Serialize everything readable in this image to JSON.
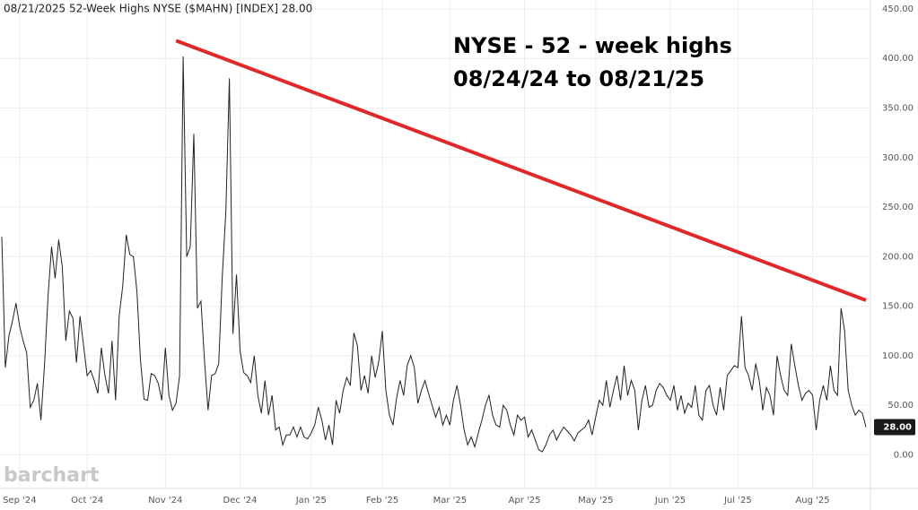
{
  "chart_data": {
    "type": "line",
    "title": "08/21/2025 52-Week Highs NYSE ($MAHN) [INDEX] 28.00",
    "annotations": [
      "NYSE - 52 - week highs",
      "08/24/24 to 08/21/25"
    ],
    "watermark": "barchart",
    "last_label": "28.00",
    "categories": [
      null,
      null,
      null,
      null,
      null,
      "Sep '24",
      null,
      null,
      null,
      null,
      null,
      null,
      null,
      null,
      null,
      null,
      null,
      null,
      null,
      null,
      null,
      null,
      null,
      null,
      "Oct '24",
      null,
      null,
      null,
      null,
      null,
      null,
      null,
      null,
      null,
      null,
      null,
      null,
      null,
      null,
      null,
      null,
      null,
      null,
      null,
      null,
      null,
      "Nov '24",
      null,
      null,
      null,
      null,
      null,
      null,
      null,
      null,
      null,
      null,
      null,
      null,
      null,
      null,
      null,
      null,
      null,
      null,
      null,
      null,
      "Dec '24",
      null,
      null,
      null,
      null,
      null,
      null,
      null,
      null,
      null,
      null,
      null,
      null,
      null,
      null,
      null,
      null,
      null,
      null,
      null,
      "Jan '25",
      null,
      null,
      null,
      null,
      null,
      null,
      null,
      null,
      null,
      null,
      null,
      null,
      null,
      null,
      null,
      null,
      null,
      null,
      null,
      "Feb '25",
      null,
      null,
      null,
      null,
      null,
      null,
      null,
      null,
      null,
      null,
      null,
      null,
      null,
      null,
      null,
      null,
      null,
      null,
      "Mar '25",
      null,
      null,
      null,
      null,
      null,
      null,
      null,
      null,
      null,
      null,
      null,
      null,
      null,
      null,
      null,
      null,
      null,
      null,
      null,
      null,
      "Apr '25",
      null,
      null,
      null,
      null,
      null,
      null,
      null,
      null,
      null,
      null,
      null,
      null,
      null,
      null,
      null,
      null,
      null,
      null,
      null,
      "May '25",
      null,
      null,
      null,
      null,
      null,
      null,
      null,
      null,
      null,
      null,
      null,
      null,
      null,
      null,
      null,
      null,
      null,
      null,
      null,
      null,
      "Jun '25",
      null,
      null,
      null,
      null,
      null,
      null,
      null,
      null,
      null,
      null,
      null,
      null,
      null,
      null,
      null,
      null,
      null,
      null,
      "Jul '25",
      null,
      null,
      null,
      null,
      null,
      null,
      null,
      null,
      null,
      null,
      null,
      null,
      null,
      null,
      null,
      null,
      null,
      null,
      null,
      null,
      "Aug '25",
      null,
      null,
      null,
      null,
      null,
      null,
      null,
      null,
      null,
      null,
      null,
      null,
      null,
      null,
      null
    ],
    "series": [
      {
        "name": "52-Week Highs NYSE ($MAHN)",
        "color": "#222222",
        "values": [
          220,
          88,
          120,
          135,
          153,
          130,
          115,
          103,
          48,
          55,
          72,
          35,
          90,
          160,
          210,
          178,
          217,
          190,
          115,
          145,
          138,
          93,
          140,
          110,
          80,
          85,
          75,
          62,
          108,
          80,
          62,
          115,
          55,
          140,
          170,
          222,
          202,
          200,
          165,
          95,
          56,
          55,
          82,
          80,
          72,
          55,
          108,
          60,
          45,
          52,
          80,
          402,
          200,
          210,
          324,
          148,
          155,
          95,
          45,
          80,
          82,
          92,
          180,
          245,
          380,
          122,
          182,
          105,
          83,
          80,
          73,
          100,
          60,
          42,
          75,
          40,
          60,
          25,
          28,
          10,
          20,
          20,
          28,
          18,
          28,
          18,
          16,
          22,
          30,
          48,
          35,
          15,
          30,
          10,
          55,
          42,
          65,
          78,
          70,
          123,
          110,
          65,
          80,
          62,
          100,
          78,
          94,
          125,
          65,
          40,
          30,
          57,
          75,
          60,
          90,
          100,
          88,
          52,
          65,
          75,
          62,
          50,
          38,
          48,
          30,
          40,
          30,
          55,
          70,
          50,
          25,
          10,
          18,
          8,
          22,
          35,
          50,
          60,
          40,
          30,
          28,
          50,
          45,
          30,
          20,
          40,
          35,
          38,
          18,
          25,
          15,
          5,
          3,
          10,
          20,
          25,
          15,
          22,
          28,
          24,
          20,
          14,
          22,
          25,
          28,
          35,
          20,
          38,
          55,
          50,
          75,
          48,
          65,
          80,
          55,
          90,
          60,
          75,
          65,
          25,
          55,
          70,
          48,
          50,
          65,
          72,
          68,
          60,
          55,
          70,
          45,
          60,
          42,
          52,
          48,
          70,
          40,
          35,
          65,
          70,
          50,
          40,
          68,
          45,
          80,
          85,
          90,
          88,
          140,
          88,
          80,
          65,
          92,
          75,
          45,
          68,
          60,
          40,
          100,
          80,
          65,
          60,
          112,
          90,
          70,
          55,
          62,
          65,
          60,
          25,
          55,
          70,
          55,
          90,
          65,
          60,
          148,
          125,
          65,
          50,
          40,
          45,
          42,
          28
        ]
      }
    ],
    "trendline": {
      "color": "#e0282a",
      "x": [
        49,
        243
      ],
      "values": [
        418,
        156
      ]
    },
    "ylim": [
      -34,
      459
    ],
    "yticks": [
      {
        "value": 0,
        "label": "0.00"
      },
      {
        "value": 50,
        "label": "50.00"
      },
      {
        "value": 100,
        "label": "100.00"
      },
      {
        "value": 150,
        "label": "150.00"
      },
      {
        "value": 200,
        "label": "200.00"
      },
      {
        "value": 250,
        "label": "250.00"
      },
      {
        "value": 300,
        "label": "300.00"
      },
      {
        "value": 350,
        "label": "350.00"
      },
      {
        "value": 400,
        "label": "400.00"
      },
      {
        "value": 450,
        "label": "450.00"
      }
    ],
    "grid": true
  }
}
